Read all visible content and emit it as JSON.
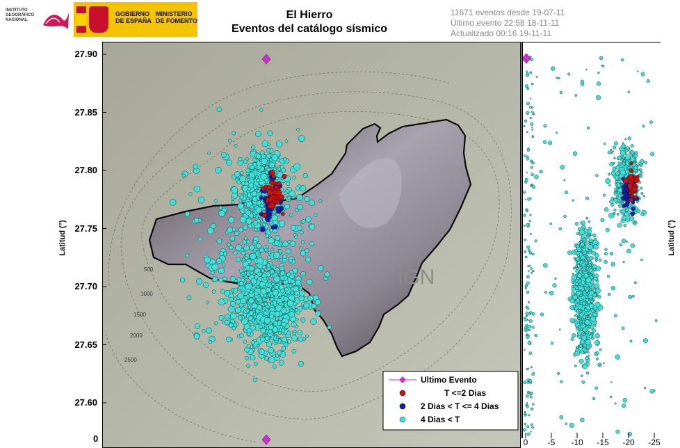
{
  "header": {
    "ign_logo_text": "INSTITUTO\nGEOGRÁFICO\nNACIONAL",
    "gobierno_text": "GOBIERNO\nDE ESPAÑA",
    "ministerio_text": "MINISTERIO\nDE FOMENTO",
    "title_line1": "El Hierro",
    "title_line2": "Eventos del catálogo sísmico",
    "info_line1": "11671 eventos desde 19-07-11",
    "info_line2": "Último evento 22:58 18-11-11",
    "info_line3": "Actualizado   00:16  19-11-11"
  },
  "map": {
    "watermark": "IGN",
    "y_axis_label": "Latitud (°)",
    "y_ticks": [
      "27.90",
      "27.85",
      "27.80",
      "27.75",
      "27.70",
      "27.65",
      "27.60"
    ],
    "x_corner_label": "0",
    "contour_labels": [
      "500",
      "1000",
      "1500",
      "2000",
      "2500"
    ]
  },
  "depth_panel": {
    "y_axis_label": "Latitud (°)",
    "x_ticks": [
      "0",
      "-5",
      "-10",
      "-15",
      "-20",
      "-25"
    ]
  },
  "legend": {
    "items": [
      {
        "label": "Ultimo Evento",
        "color": "#cc33cc"
      },
      {
        "label": "T <=2 Dias",
        "color": "#cc1111"
      },
      {
        "label": "2 Dias  < T <= 4 Dias",
        "color": "#1122aa"
      },
      {
        "label": "4 Dias <  T",
        "color": "#33dddd"
      }
    ]
  },
  "colors": {
    "recent": "#cc1111",
    "mid": "#1122aa",
    "old": "#40e0d8",
    "last_event": "#cc33cc"
  }
}
